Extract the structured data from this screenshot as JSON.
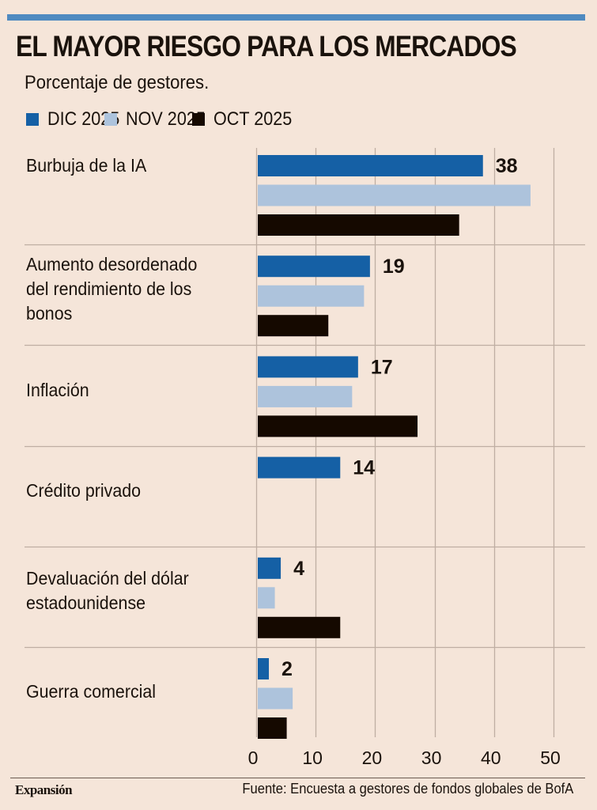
{
  "header": {
    "title": "EL MAYOR RIESGO PARA LOS MERCADOS",
    "subtitle": "Porcentaje de gestores."
  },
  "colors": {
    "accent_rule": "#4f8ac0",
    "dic": "#1560a5",
    "nov": "#adc3dc",
    "oct": "#150900",
    "background": "#f5e5d9",
    "grid": "#bfaea3"
  },
  "chart_data": {
    "type": "bar",
    "orientation": "horizontal",
    "title": "EL MAYOR RIESGO PARA LOS MERCADOS",
    "subtitle": "Porcentaje de gestores.",
    "xlabel": "",
    "ylabel": "",
    "xlim": [
      0,
      50
    ],
    "x_ticks": [
      0,
      10,
      20,
      30,
      40,
      50
    ],
    "x_tick_labels": [
      "0",
      "10",
      "20",
      "30",
      "40",
      "50"
    ],
    "grid": true,
    "legend_position": "top-left",
    "categories": [
      "Burbuja de la IA",
      "Aumento desordenado del rendimiento de los bonos",
      "Inflación",
      "Crédito privado",
      "Devaluación del dólar estadounidense",
      "Guerra comercial"
    ],
    "category_label_lines": [
      [
        "Burbuja de la IA"
      ],
      [
        "Aumento desordenado",
        "del rendimiento de los",
        "bonos"
      ],
      [
        "Inflación"
      ],
      [
        "Crédito privado"
      ],
      [
        "Devaluación del dólar",
        "estadounidense"
      ],
      [
        "Guerra comercial"
      ]
    ],
    "series": [
      {
        "name": "DIC 2025",
        "color": "#1560a5",
        "values": [
          38,
          19,
          17,
          14,
          4,
          2
        ],
        "labeled": true
      },
      {
        "name": "NOV 2025",
        "color": "#adc3dc",
        "values": [
          46,
          18,
          16,
          null,
          3,
          6
        ],
        "labeled": false
      },
      {
        "name": "OCT 2025",
        "color": "#150900",
        "values": [
          34,
          12,
          27,
          null,
          14,
          5
        ],
        "labeled": false
      }
    ],
    "data_labels": [
      "38",
      "19",
      "17",
      "14",
      "4",
      "2"
    ]
  },
  "footer": {
    "brand": "Expansión",
    "source": "Fuente: Encuesta a gestores de fondos globales de BofA"
  }
}
